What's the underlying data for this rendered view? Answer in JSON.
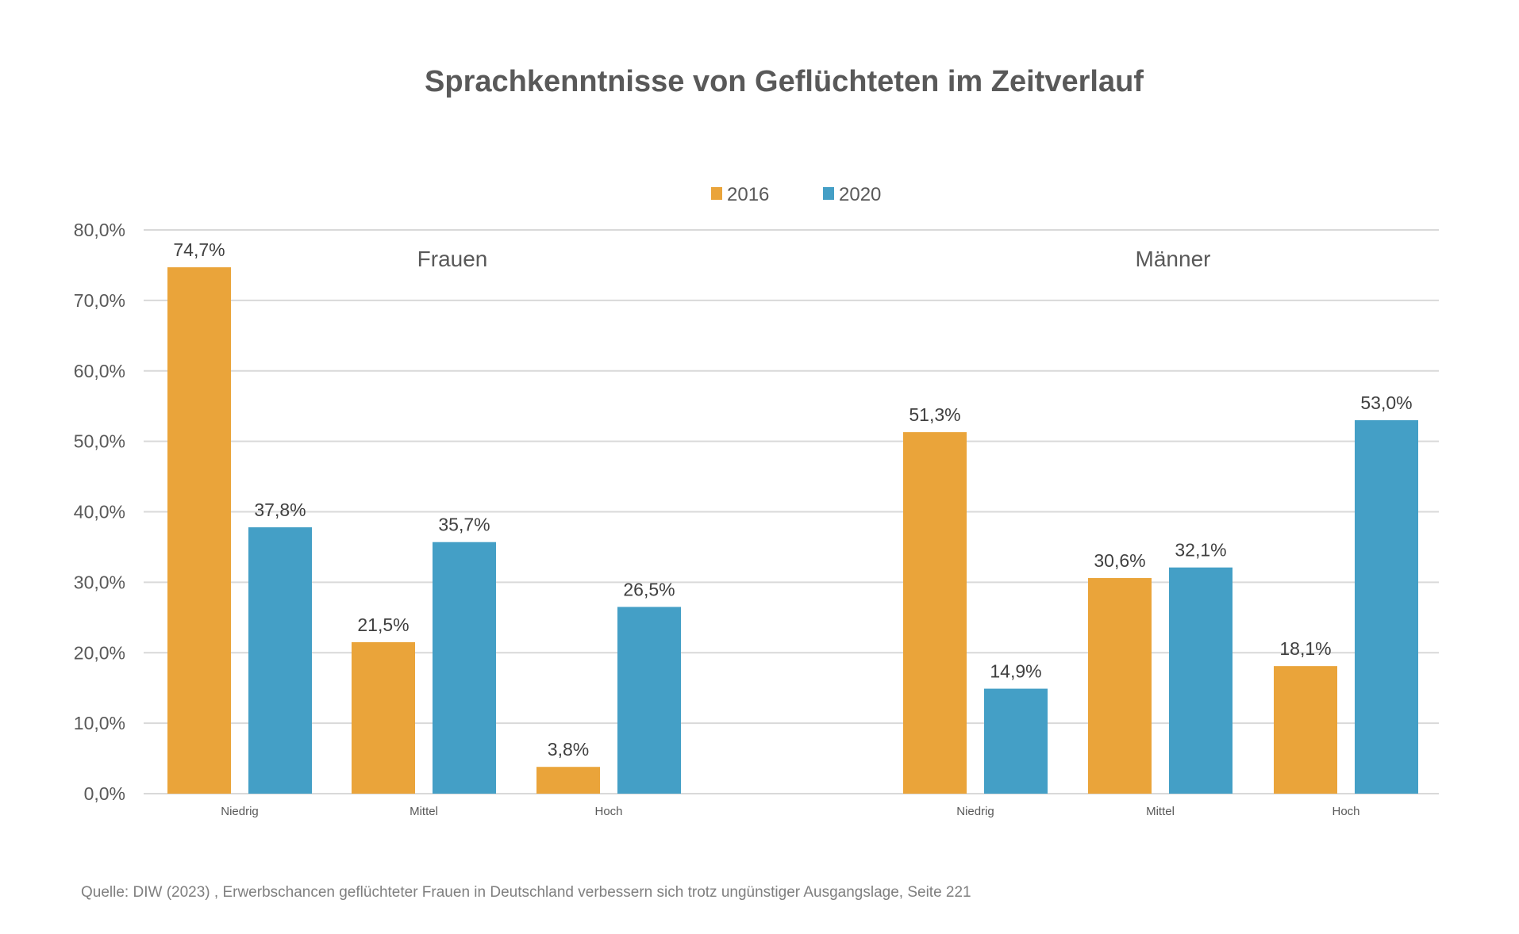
{
  "chart_data": {
    "type": "bar",
    "title": "Sprachkenntnisse von Geflüchteten im Zeitverlauf",
    "source": "Quelle: DIW (2023) , Erwerbschancen geflüchteter Frauen in Deutschland verbessern sich trotz ungünstiger Ausgangslage, Seite 221",
    "groups": [
      "Frauen",
      "Männer"
    ],
    "categories": [
      "Niedrig",
      "Mittel",
      "Hoch"
    ],
    "series": [
      {
        "name": "2016",
        "color": "#EAA43A",
        "values": {
          "Frauen": [
            74.7,
            21.5,
            3.8
          ],
          "Männer": [
            51.3,
            30.6,
            18.1
          ]
        },
        "labels": {
          "Frauen": [
            "74,7%",
            "21,5%",
            "3,8%"
          ],
          "Männer": [
            "51,3%",
            "30,6%",
            "18,1%"
          ]
        }
      },
      {
        "name": "2020",
        "color": "#449FC6",
        "values": {
          "Frauen": [
            37.8,
            35.7,
            26.5
          ],
          "Männer": [
            14.9,
            32.1,
            53.0
          ]
        },
        "labels": {
          "Frauen": [
            "37,8%",
            "35,7%",
            "26,5%"
          ],
          "Männer": [
            "14,9%",
            "32,1%",
            "53,0%"
          ]
        }
      }
    ],
    "yticks": [
      0,
      10,
      20,
      30,
      40,
      50,
      60,
      70,
      80
    ],
    "ytick_labels": [
      "0,0%",
      "10,0%",
      "20,0%",
      "30,0%",
      "40,0%",
      "50,0%",
      "60,0%",
      "70,0%",
      "80,0%"
    ],
    "ylim": [
      0,
      80
    ],
    "xlabel": "",
    "ylabel": "",
    "grid": true,
    "legend_position": "top-center"
  }
}
